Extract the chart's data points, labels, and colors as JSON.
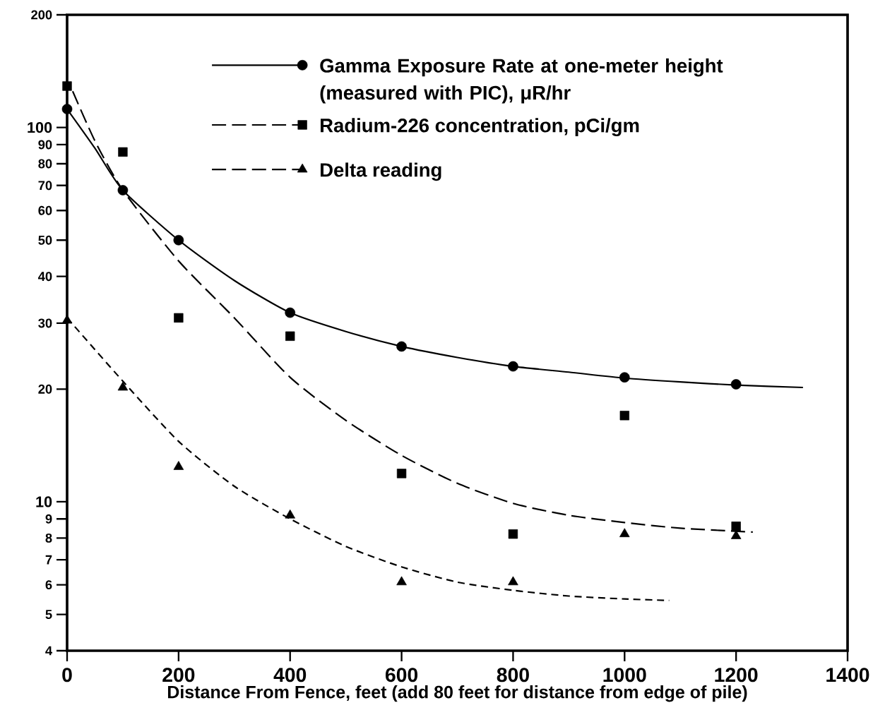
{
  "chart_data": {
    "type": "scatter",
    "xlabel": "Distance From Fence,  feet  (add 80 feet for distance from edge of pile)",
    "xlim": [
      0,
      1400
    ],
    "xticks": [
      0,
      200,
      400,
      600,
      800,
      1000,
      1200,
      1400
    ],
    "ylim": [
      4,
      200
    ],
    "yticks": [
      4,
      5,
      6,
      7,
      8,
      9,
      10,
      20,
      30,
      40,
      50,
      60,
      70,
      80,
      90,
      100,
      200
    ],
    "log": "y",
    "grid": false,
    "legend": "top",
    "series": [
      {
        "name": "Gamma Exposure Rate at one-meter height (measured with PIC), μR/hr",
        "color": "#000000",
        "marker": "circle",
        "line_style": "solid",
        "x": [
          0,
          100,
          200,
          400,
          600,
          800,
          1000,
          1200
        ],
        "values": [
          112,
          68,
          50,
          32,
          26,
          23,
          21.5,
          20.6
        ]
      },
      {
        "name": "Radium-226 concentration, pCi/gm",
        "color": "#000000",
        "marker": "square",
        "line_style": "dashed",
        "x": [
          0,
          100,
          200,
          400,
          600,
          800,
          1000,
          1200
        ],
        "values": [
          129,
          86,
          31,
          27.7,
          11.9,
          8.2,
          17,
          8.6
        ]
      },
      {
        "name": "Delta reading",
        "color": "#000000",
        "marker": "triangle",
        "line_style": "dashed",
        "x": [
          0,
          100,
          200,
          400,
          600,
          800,
          1000,
          1200
        ],
        "values": [
          30.5,
          20.2,
          12.4,
          9.2,
          6.1,
          6.1,
          8.2,
          8.1
        ]
      },
      {
        "type": "line",
        "color": "#000000",
        "line_style": "solid",
        "x": [
          0,
          50,
          100,
          200,
          300,
          400,
          500,
          600,
          700,
          800,
          900,
          1000,
          1100,
          1200,
          1320
        ],
        "values": [
          112,
          88,
          68,
          50,
          39,
          32,
          28.5,
          26,
          24.3,
          23,
          22.2,
          21.4,
          20.9,
          20.5,
          20.2
        ]
      },
      {
        "type": "line",
        "color": "#000000",
        "line_style": "dashed",
        "x": [
          10,
          50,
          100,
          200,
          300,
          400,
          500,
          600,
          700,
          800,
          900,
          1000,
          1100,
          1230
        ],
        "values": [
          125,
          92,
          68,
          44,
          31,
          21.5,
          16.5,
          13.3,
          11.2,
          9.9,
          9.2,
          8.8,
          8.5,
          8.3
        ]
      },
      {
        "type": "line",
        "color": "#000000",
        "line_style": "dotted",
        "x": [
          0,
          100,
          200,
          300,
          400,
          500,
          600,
          700,
          800,
          900,
          1000,
          1080
        ],
        "values": [
          31,
          21,
          14.5,
          11,
          9,
          7.6,
          6.7,
          6.1,
          5.8,
          5.6,
          5.5,
          5.45
        ]
      }
    ]
  }
}
